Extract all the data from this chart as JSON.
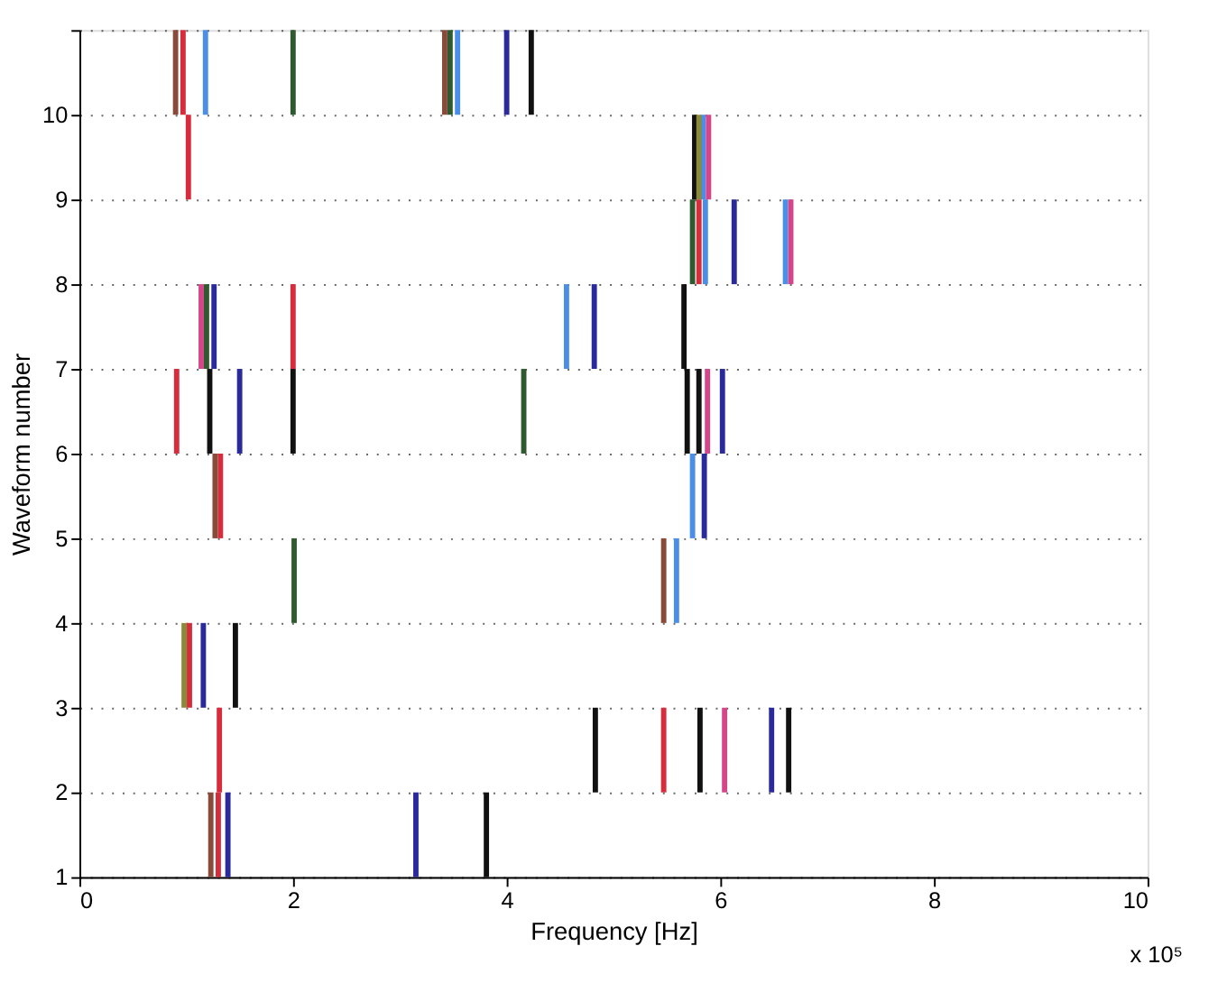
{
  "chart_data": {
    "type": "bar",
    "xlabel": "Frequency [Hz]",
    "ylabel": "Waveform number",
    "annotations": [
      "x 10⁵"
    ],
    "series": [
      {
        "color": "#d62c3c",
        "x": [
          0.91,
          0.97,
          1.02,
          1.03,
          1.3,
          1.31,
          1.32,
          2.0,
          5.47,
          5.8
        ],
        "base": [
          6,
          10,
          9,
          3,
          1,
          2,
          5,
          7,
          2,
          8
        ],
        "values": [
          1,
          1,
          1,
          1,
          1,
          1,
          1,
          1,
          1,
          1
        ]
      },
      {
        "color": "#4a8ee8",
        "x": [
          1.18,
          3.54,
          4.56,
          5.59,
          5.74,
          5.84,
          5.86,
          6.61
        ],
        "base": [
          10,
          10,
          7,
          4,
          5,
          9,
          8,
          8
        ],
        "values": [
          1,
          1,
          1,
          1,
          1,
          1,
          1,
          1
        ]
      },
      {
        "color": "#2a2a9a",
        "x": [
          1.16,
          1.26,
          1.39,
          1.5,
          3.15,
          4.0,
          4.82,
          5.85,
          6.02,
          6.13,
          6.48
        ],
        "base": [
          3,
          7,
          1,
          6,
          1,
          10,
          7,
          5,
          6,
          8,
          2
        ],
        "values": [
          1,
          1,
          1,
          1,
          1,
          1,
          1,
          1,
          1,
          1,
          1
        ]
      },
      {
        "color": "#111111",
        "x": [
          1.22,
          1.46,
          2.0,
          3.81,
          4.23,
          4.83,
          5.66,
          5.69,
          5.76,
          5.8,
          5.81,
          6.64
        ],
        "base": [
          6,
          3,
          6,
          1,
          10,
          2,
          7,
          6,
          9,
          6,
          2,
          2
        ],
        "values": [
          1,
          1,
          1,
          1,
          1,
          1,
          1,
          1,
          1,
          1,
          1,
          1
        ]
      },
      {
        "color": "#2f5a2f",
        "x": [
          1.19,
          2.0,
          2.01,
          3.47,
          4.16,
          5.74
        ],
        "base": [
          7,
          10,
          4,
          10,
          6,
          8
        ],
        "values": [
          1,
          1,
          1,
          1,
          1,
          1
        ]
      },
      {
        "color": "#8a4a3a",
        "x": [
          0.9,
          1.23,
          1.27,
          3.42,
          5.47
        ],
        "base": [
          10,
          1,
          5,
          10,
          4
        ],
        "values": [
          1,
          1,
          1,
          1,
          1
        ]
      },
      {
        "color": "#d4458a",
        "x": [
          1.14,
          5.88,
          5.89,
          6.04,
          6.66
        ],
        "base": [
          7,
          6,
          9,
          2,
          8
        ],
        "values": [
          1,
          1,
          1,
          1,
          1
        ]
      },
      {
        "color": "#8a8a3a",
        "x": [
          0.98,
          5.8
        ],
        "base": [
          3,
          9
        ],
        "values": [
          1,
          1
        ]
      }
    ],
    "xlim": [
      0,
      10
    ],
    "xticks": [
      0,
      2,
      4,
      6,
      8,
      10
    ],
    "ylim": [
      1,
      11
    ],
    "yticks": [
      1,
      2,
      3,
      4,
      5,
      6,
      7,
      8,
      9,
      10,
      {
        "value": 11,
        "label": null
      }
    ],
    "grid": "y",
    "line_style": "dotted"
  }
}
